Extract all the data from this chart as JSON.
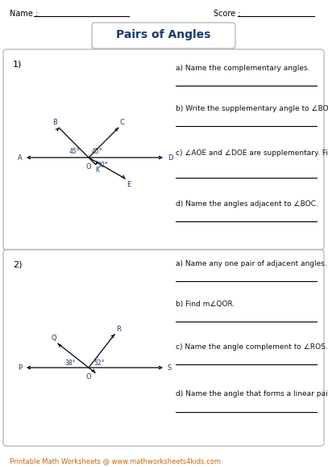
{
  "title": "Pairs of Angles",
  "name_label": "Name :",
  "score_label": "Score :",
  "bg_color": "#ffffff",
  "title_color": "#1a3a6b",
  "text_color": "#000000",
  "footer": "Printable Math Worksheets @ www.mathworksheets4kids.com",
  "footer_color": "#cc6600",
  "problem1_number": "1)",
  "problem2_number": "2)",
  "p1_questions": [
    "a) Name the complementary angles.",
    "b) Write the supplementary angle to ∠BOA.",
    "c) ∠AOE and ∠DOE are supplementary. Find m∠AOE.",
    "d) Name the angles adjacent to ∠BOC."
  ],
  "p2_questions": [
    "a) Name any one pair of adjacent angles.",
    "b) Find m∠QOR.",
    "c) Name the angle complement to ∠ROS.",
    "d) Name the angle that forms a linear pair with ∠POQ."
  ]
}
